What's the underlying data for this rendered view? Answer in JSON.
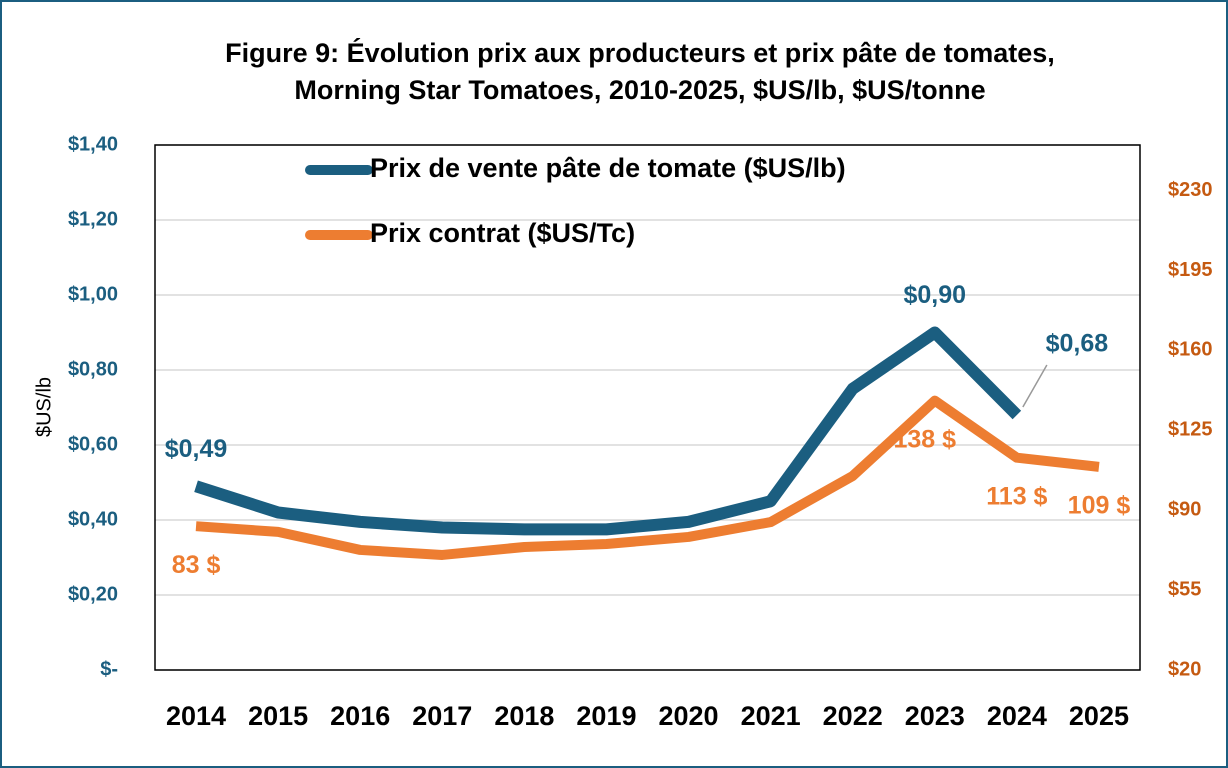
{
  "chart_data": {
    "type": "line",
    "title": [
      "Figure 9: Évolution prix aux producteurs et prix pâte de tomates,",
      "Morning Star Tomatoes, 2010-2025, $US/lb, $US/tonne"
    ],
    "y_label": "$US/lb",
    "categories": [
      "2014",
      "2015",
      "2016",
      "2017",
      "2018",
      "2019",
      "2020",
      "2021",
      "2022",
      "2023",
      "2024",
      "2025"
    ],
    "series": [
      {
        "name": "Prix de vente pâte de tomate ($US/lb)",
        "color": "#1b5e80",
        "axis": "y",
        "values": [
          0.49,
          0.42,
          0.395,
          0.38,
          0.375,
          0.375,
          0.395,
          0.45,
          0.75,
          0.9,
          0.68,
          null
        ],
        "value_labels": [
          "$0,49",
          null,
          null,
          null,
          null,
          null,
          null,
          null,
          null,
          "$0,90",
          "$0,68",
          null
        ]
      },
      {
        "name": "Prix contrat ($US/Tc)",
        "color": "#ed7d31",
        "axis": "y2",
        "values": [
          83,
          80.5,
          72.6,
          70.4,
          73.9,
          75.2,
          78.3,
          84.8,
          105,
          138,
          113,
          109
        ],
        "value_labels": [
          "83 $",
          null,
          null,
          null,
          null,
          null,
          null,
          null,
          null,
          "138 $",
          "113 $",
          "109 $"
        ]
      }
    ],
    "ylim": [
      0,
      1.4
    ],
    "yticks": [
      {
        "value": 0,
        "label": "$-"
      },
      {
        "value": 0.2,
        "label": "$0,20"
      },
      {
        "value": 0.4,
        "label": "$0,40"
      },
      {
        "value": 0.6,
        "label": "$0,60"
      },
      {
        "value": 0.8,
        "label": "$0,80"
      },
      {
        "value": 1.0,
        "label": "$1,00"
      },
      {
        "value": 1.2,
        "label": "$1,20"
      },
      {
        "value": 1.4,
        "label": "$1,40"
      }
    ],
    "y2lim": [
      20,
      250
    ],
    "y2ticks": [
      {
        "value": 20,
        "label": "$20"
      },
      {
        "value": 55,
        "label": "$55"
      },
      {
        "value": 90,
        "label": "$90"
      },
      {
        "value": 125,
        "label": "$125"
      },
      {
        "value": 160,
        "label": "$160"
      },
      {
        "value": 195,
        "label": "$195"
      },
      {
        "value": 230,
        "label": "$230"
      }
    ],
    "grid": true,
    "legend": "upper left",
    "y2_color": "#c55a11"
  }
}
